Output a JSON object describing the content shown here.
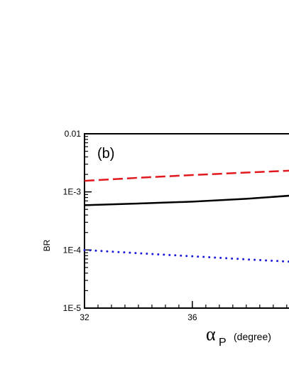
{
  "chart_data": {
    "type": "line",
    "panel_label": "(b)",
    "ylabel": "BR",
    "xlabel": {
      "symbol": "α",
      "subscript": "P",
      "unit": "(degree)"
    },
    "xlim": [
      32,
      39.9
    ],
    "ylim": [
      1e-05,
      0.01
    ],
    "yscale": "log",
    "x_ticks": [
      {
        "value": 32,
        "label": "32"
      },
      {
        "value": 36,
        "label": "36"
      }
    ],
    "y_ticks": [
      {
        "value": 0.01,
        "label": "0.01"
      },
      {
        "value": 0.001,
        "label": "1E-3"
      },
      {
        "value": 0.0001,
        "label": "1E-4"
      },
      {
        "value": 1e-05,
        "label": "1E-5"
      }
    ],
    "grid": false,
    "series": [
      {
        "style": "dashed",
        "color": "#e0191f",
        "x": [
          32,
          34,
          36,
          38,
          39.9
        ],
        "y": [
          0.00155,
          0.00175,
          0.00195,
          0.00215,
          0.00235
        ]
      },
      {
        "style": "solid",
        "color": "#000000",
        "x": [
          32,
          34,
          36,
          38,
          39.9
        ],
        "y": [
          0.00059,
          0.00063,
          0.00068,
          0.00076,
          0.00088
        ]
      },
      {
        "style": "dotted",
        "color": "#1a1adf",
        "x": [
          32,
          34,
          36,
          38,
          39.9
        ],
        "y": [
          0.0001,
          8.8e-05,
          7.8e-05,
          6.9e-05,
          6.2e-05
        ]
      }
    ]
  }
}
